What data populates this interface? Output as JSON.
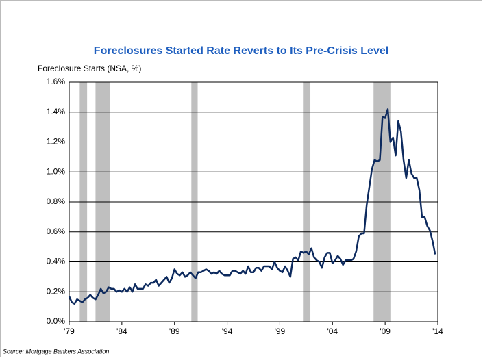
{
  "chart_data": {
    "type": "line",
    "title": "Foreclosures Started Rate Reverts to Its Pre-Crisis Level",
    "y_label": "Foreclosure Starts (NSA, %)",
    "source": "Source: Mortgage Bankers Association",
    "xlim": [
      1979,
      2014
    ],
    "xticks": [
      {
        "value": 1979,
        "label": "'79"
      },
      {
        "value": 1984,
        "label": "'84"
      },
      {
        "value": 1989,
        "label": "'89"
      },
      {
        "value": 1994,
        "label": "'94"
      },
      {
        "value": 1999,
        "label": "'99"
      },
      {
        "value": 2004,
        "label": "'04"
      },
      {
        "value": 2009,
        "label": "'09"
      },
      {
        "value": 2014,
        "label": "'14"
      }
    ],
    "ylim": [
      0,
      1.6
    ],
    "yticks": [
      {
        "value": 0,
        "label": "0.0%"
      },
      {
        "value": 0.2,
        "label": "0.2%"
      },
      {
        "value": 0.4,
        "label": "0.4%"
      },
      {
        "value": 0.6,
        "label": "0.6%"
      },
      {
        "value": 0.8,
        "label": "0.8%"
      },
      {
        "value": 1.0,
        "label": "1.0%"
      },
      {
        "value": 1.2,
        "label": "1.2%"
      },
      {
        "value": 1.4,
        "label": "1.4%"
      },
      {
        "value": 1.6,
        "label": "1.6%"
      }
    ],
    "grid": true,
    "shaded_periods": [
      {
        "start": 1980.0,
        "end": 1980.7
      },
      {
        "start": 1981.5,
        "end": 1982.9
      },
      {
        "start": 1990.6,
        "end": 1991.2
      },
      {
        "start": 2001.2,
        "end": 2001.9
      },
      {
        "start": 2007.9,
        "end": 2009.5
      }
    ],
    "shade_color": "#bfbfbf",
    "x": [
      1979,
      1979.25,
      1979.5,
      1979.75,
      1980,
      1980.25,
      1980.5,
      1980.75,
      1981,
      1981.25,
      1981.5,
      1981.75,
      1982,
      1982.25,
      1982.5,
      1982.75,
      1983,
      1983.25,
      1983.5,
      1983.75,
      1984,
      1984.25,
      1984.5,
      1984.75,
      1985,
      1985.25,
      1985.5,
      1985.75,
      1986,
      1986.25,
      1986.5,
      1986.75,
      1987,
      1987.25,
      1987.5,
      1987.75,
      1988,
      1988.25,
      1988.5,
      1988.75,
      1989,
      1989.25,
      1989.5,
      1989.75,
      1990,
      1990.25,
      1990.5,
      1990.75,
      1991,
      1991.25,
      1991.5,
      1991.75,
      1992,
      1992.25,
      1992.5,
      1992.75,
      1993,
      1993.25,
      1993.5,
      1993.75,
      1994,
      1994.25,
      1994.5,
      1994.75,
      1995,
      1995.25,
      1995.5,
      1995.75,
      1996,
      1996.25,
      1996.5,
      1996.75,
      1997,
      1997.25,
      1997.5,
      1997.75,
      1998,
      1998.25,
      1998.5,
      1998.75,
      1999,
      1999.25,
      1999.5,
      1999.75,
      2000,
      2000.25,
      2000.5,
      2000.75,
      2001,
      2001.25,
      2001.5,
      2001.75,
      2002,
      2002.25,
      2002.5,
      2002.75,
      2003,
      2003.25,
      2003.5,
      2003.75,
      2004,
      2004.25,
      2004.5,
      2004.75,
      2005,
      2005.25,
      2005.5,
      2005.75,
      2006,
      2006.25,
      2006.5,
      2006.75,
      2007,
      2007.25,
      2007.5,
      2007.75,
      2008,
      2008.25,
      2008.5,
      2008.75,
      2009,
      2009.25,
      2009.5,
      2009.75,
      2010,
      2010.25,
      2010.5,
      2010.75,
      2011,
      2011.25,
      2011.5,
      2011.75,
      2012,
      2012.25,
      2012.5,
      2012.75,
      2013,
      2013.25,
      2013.5,
      2013.75
    ],
    "series": [
      {
        "color": "#0d2a5e",
        "values": [
          0.17,
          0.13,
          0.12,
          0.15,
          0.14,
          0.13,
          0.15,
          0.16,
          0.18,
          0.16,
          0.15,
          0.18,
          0.22,
          0.19,
          0.2,
          0.23,
          0.22,
          0.22,
          0.2,
          0.21,
          0.2,
          0.22,
          0.2,
          0.23,
          0.2,
          0.25,
          0.22,
          0.22,
          0.22,
          0.25,
          0.24,
          0.26,
          0.26,
          0.28,
          0.24,
          0.26,
          0.28,
          0.3,
          0.26,
          0.29,
          0.35,
          0.32,
          0.31,
          0.33,
          0.3,
          0.31,
          0.33,
          0.31,
          0.29,
          0.33,
          0.33,
          0.34,
          0.35,
          0.34,
          0.32,
          0.33,
          0.32,
          0.34,
          0.32,
          0.31,
          0.31,
          0.31,
          0.34,
          0.34,
          0.33,
          0.32,
          0.34,
          0.32,
          0.37,
          0.33,
          0.33,
          0.36,
          0.36,
          0.34,
          0.37,
          0.37,
          0.37,
          0.35,
          0.4,
          0.36,
          0.34,
          0.33,
          0.37,
          0.34,
          0.3,
          0.42,
          0.43,
          0.41,
          0.47,
          0.46,
          0.47,
          0.45,
          0.49,
          0.43,
          0.41,
          0.4,
          0.36,
          0.43,
          0.46,
          0.46,
          0.39,
          0.41,
          0.44,
          0.42,
          0.38,
          0.41,
          0.41,
          0.41,
          0.42,
          0.47,
          0.57,
          0.59,
          0.59,
          0.78,
          0.9,
          1.02,
          1.08,
          1.07,
          1.08,
          1.37,
          1.36,
          1.42,
          1.2,
          1.23,
          1.11,
          1.34,
          1.27,
          1.08,
          0.96,
          1.08,
          0.99,
          0.96,
          0.96,
          0.88,
          0.7,
          0.7,
          0.64,
          0.61,
          0.54,
          0.45
        ]
      }
    ]
  }
}
